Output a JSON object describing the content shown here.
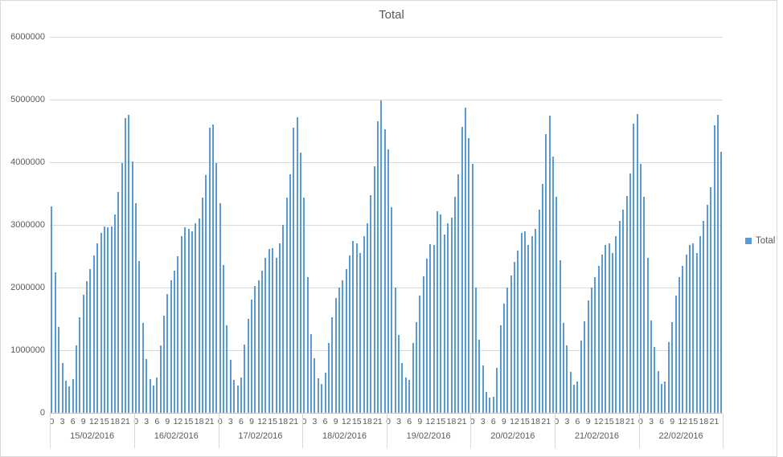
{
  "chart_data": {
    "type": "bar",
    "title": "Total",
    "legend": [
      "Total"
    ],
    "legend_position": "right",
    "grid": true,
    "ylim": [
      0,
      6000000
    ],
    "y_ticks": [
      "0",
      "1000000",
      "2000000",
      "3000000",
      "4000000",
      "5000000",
      "6000000"
    ],
    "hour_labels": [
      "0",
      "3",
      "6",
      "9",
      "12",
      "15",
      "18",
      "21"
    ],
    "colors": {
      "bar": "#5b9bd5",
      "gridline": "#d9d9d9",
      "text": "#595959"
    },
    "days": [
      {
        "date": "15/02/2016",
        "values": [
          3300000,
          2240000,
          1370000,
          790000,
          510000,
          420000,
          540000,
          1080000,
          1530000,
          1890000,
          2100000,
          2290000,
          2510000,
          2700000,
          2870000,
          2980000,
          2960000,
          2970000,
          3170000,
          3530000,
          3990000,
          4710000,
          4760000,
          4010000
        ]
      },
      {
        "date": "16/02/2016",
        "values": [
          3350000,
          2420000,
          1430000,
          860000,
          540000,
          440000,
          560000,
          1080000,
          1550000,
          1900000,
          2120000,
          2270000,
          2500000,
          2820000,
          2960000,
          2940000,
          2900000,
          3020000,
          3100000,
          3430000,
          3790000,
          4550000,
          4600000,
          3990000
        ]
      },
      {
        "date": "17/02/2016",
        "values": [
          3350000,
          2360000,
          1400000,
          850000,
          520000,
          440000,
          560000,
          1090000,
          1500000,
          1810000,
          2020000,
          2120000,
          2270000,
          2480000,
          2620000,
          2630000,
          2480000,
          2710000,
          3000000,
          3430000,
          3810000,
          4550000,
          4720000,
          4160000
        ]
      },
      {
        "date": "18/02/2016",
        "values": [
          3440000,
          2170000,
          1260000,
          870000,
          550000,
          460000,
          640000,
          1120000,
          1530000,
          1830000,
          2000000,
          2110000,
          2300000,
          2510000,
          2740000,
          2710000,
          2550000,
          2820000,
          3030000,
          3470000,
          3930000,
          4650000,
          4990000,
          4530000
        ]
      },
      {
        "date": "19/02/2016",
        "values": [
          4210000,
          3280000,
          2000000,
          1250000,
          800000,
          570000,
          530000,
          1110000,
          1450000,
          1870000,
          2180000,
          2460000,
          2690000,
          2680000,
          3220000,
          3170000,
          2840000,
          3030000,
          3110000,
          3450000,
          3810000,
          4560000,
          4870000,
          4380000
        ]
      },
      {
        "date": "20/02/2016",
        "values": [
          3970000,
          2000000,
          1170000,
          760000,
          330000,
          250000,
          260000,
          720000,
          1400000,
          1740000,
          2000000,
          2190000,
          2410000,
          2590000,
          2870000,
          2900000,
          2680000,
          2820000,
          2940000,
          3250000,
          3660000,
          4450000,
          4740000,
          4090000
        ]
      },
      {
        "date": "21/02/2016",
        "values": [
          3450000,
          2440000,
          1440000,
          1080000,
          660000,
          450000,
          500000,
          1150000,
          1460000,
          1790000,
          2000000,
          2170000,
          2340000,
          2530000,
          2680000,
          2700000,
          2550000,
          2820000,
          3070000,
          3250000,
          3460000,
          3820000,
          4610000,
          4770000
        ]
      },
      {
        "date": "22/02/2016",
        "values": [
          3980000,
          3450000,
          2470000,
          1470000,
          1050000,
          670000,
          460000,
          500000,
          1130000,
          1450000,
          1870000,
          2170000,
          2340000,
          2520000,
          2680000,
          2700000,
          2550000,
          2820000,
          3060000,
          3320000,
          3600000,
          4590000,
          4760000,
          4170000
        ]
      }
    ]
  }
}
